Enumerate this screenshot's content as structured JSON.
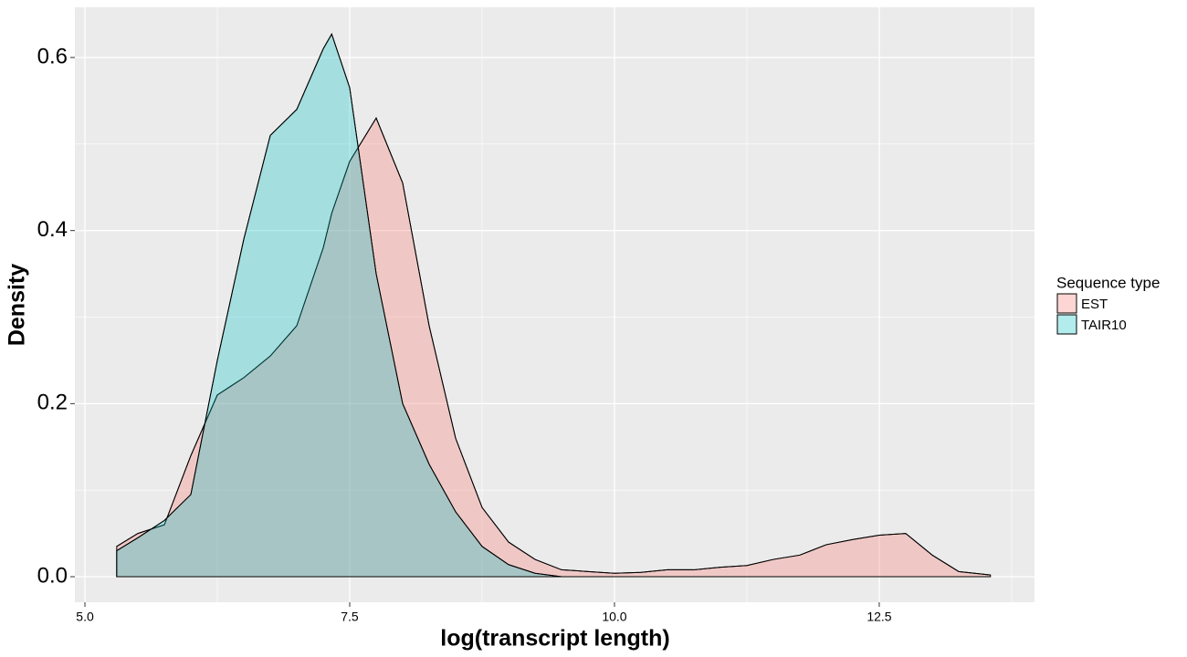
{
  "chart_data": {
    "type": "density",
    "x_label": "log(transcript length)",
    "y_label": "Density",
    "legend_title": "Sequence type",
    "legend_position": "right",
    "grid": true,
    "minor_grid": true,
    "xlim": [
      4.905,
      13.966
    ],
    "ylim": [
      -0.0295,
      0.658
    ],
    "xticks": [
      {
        "value": 5,
        "label": "5.0"
      },
      7.5,
      {
        "value": 10,
        "label": "10.0"
      },
      12.5
    ],
    "yticks": [
      {
        "value": 0,
        "label": "0.0"
      },
      0.2,
      0.4,
      0.6
    ],
    "x": [
      5.3,
      5.5,
      5.75,
      6.0,
      6.25,
      6.5,
      6.75,
      7.0,
      7.25,
      7.33,
      7.5,
      7.75,
      8.0,
      8.25,
      8.5,
      8.75,
      9.0,
      9.25,
      9.5,
      9.75,
      10.0,
      10.25,
      10.5,
      10.75,
      11.0,
      11.25,
      11.5,
      11.75,
      12.0,
      12.25,
      12.5,
      12.75,
      13.0,
      13.25,
      13.55
    ],
    "series": [
      {
        "name": "EST",
        "color": "#F8766D",
        "values": [
          0.035,
          0.05,
          0.06,
          0.14,
          0.21,
          0.23,
          0.255,
          0.29,
          0.38,
          0.42,
          0.48,
          0.53,
          0.455,
          0.29,
          0.16,
          0.08,
          0.04,
          0.02,
          0.008,
          0.006,
          0.004,
          0.005,
          0.008,
          0.008,
          0.011,
          0.013,
          0.02,
          0.025,
          0.037,
          0.043,
          0.048,
          0.05,
          0.025,
          0.006,
          0.002
        ]
      },
      {
        "name": "TAIR10",
        "color": "#00BFC4",
        "values": [
          0.03,
          0.045,
          0.065,
          0.095,
          0.25,
          0.39,
          0.51,
          0.54,
          0.61,
          0.627,
          0.565,
          0.35,
          0.2,
          0.13,
          0.075,
          0.035,
          0.014,
          0.004,
          0,
          null,
          null,
          null,
          null,
          null,
          null,
          null,
          null,
          null,
          null,
          null,
          null,
          null,
          null,
          null,
          null
        ]
      }
    ]
  }
}
